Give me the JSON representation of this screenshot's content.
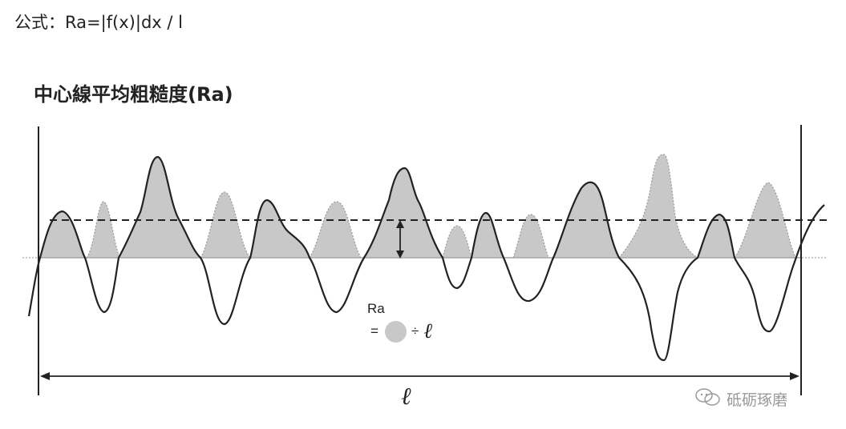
{
  "formula": "公式：Ra=|f(x)|dx / l",
  "diagram": {
    "title": "中心線平均粗糙度(Ra)",
    "ra_label": "Ra",
    "equals": "=",
    "divide": "÷",
    "ell": "ℓ",
    "length_label": "ℓ"
  },
  "watermark": {
    "text": "砥砺琢磨",
    "icon": "wechat-icon"
  },
  "colors": {
    "fill": "#c8c8c8",
    "line": "#222222",
    "baseline": "#b0b0b0"
  }
}
